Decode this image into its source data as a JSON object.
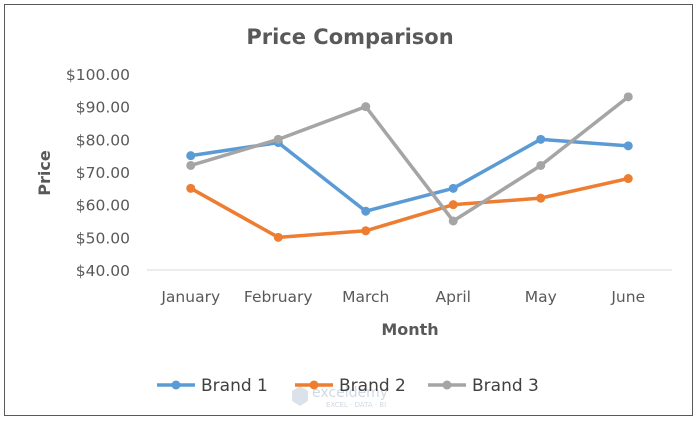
{
  "chart_data": {
    "type": "line",
    "title": "Price Comparison",
    "xlabel": "Month",
    "ylabel": "Price",
    "categories": [
      "January",
      "February",
      "March",
      "April",
      "May",
      "June"
    ],
    "y_ticks": [
      "$40.00",
      "$50.00",
      "$60.00",
      "$70.00",
      "$80.00",
      "$90.00",
      "$100.00"
    ],
    "ylim": [
      40,
      100
    ],
    "grid": false,
    "legend_position": "bottom",
    "series": [
      {
        "name": "Brand 1",
        "color": "#5b9bd5",
        "values": [
          75,
          79,
          58,
          65,
          80,
          78
        ]
      },
      {
        "name": "Brand 2",
        "color": "#ed7d31",
        "values": [
          65,
          50,
          52,
          60,
          62,
          68
        ]
      },
      {
        "name": "Brand 3",
        "color": "#a5a5a5",
        "values": [
          72,
          80,
          90,
          55,
          72,
          93
        ]
      }
    ]
  },
  "watermark": {
    "name": "exceldemy",
    "tagline": "EXCEL · DATA · BI"
  }
}
